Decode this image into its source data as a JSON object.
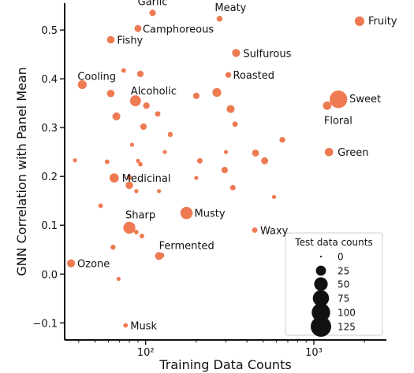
{
  "chart_data": {
    "type": "scatter",
    "title": "",
    "xlabel": "Training Data Counts",
    "ylabel": "GNN Correlation with Panel Mean",
    "xscale": "log",
    "xlim": [
      33,
      2700
    ],
    "ylim": [
      -0.135,
      0.555
    ],
    "x_ticks": [
      {
        "value": 100,
        "label": "10²"
      },
      {
        "value": 1000,
        "label": "10³"
      }
    ],
    "y_ticks": [
      {
        "value": -0.1,
        "label": "−0.1"
      },
      {
        "value": 0.0,
        "label": "0.0"
      },
      {
        "value": 0.1,
        "label": "0.1"
      },
      {
        "value": 0.2,
        "label": "0.2"
      },
      {
        "value": 0.3,
        "label": "0.3"
      },
      {
        "value": 0.4,
        "label": "0.4"
      },
      {
        "value": 0.5,
        "label": "0.5"
      }
    ],
    "grid": false,
    "marker_color": "#ee7a52",
    "size_encoding": "Test data counts",
    "legend": {
      "title": "Test data counts",
      "placement": "bottom-right",
      "entries": [
        {
          "label": "0",
          "value": 0
        },
        {
          "label": "25",
          "value": 25
        },
        {
          "label": "50",
          "value": 50
        },
        {
          "label": "75",
          "value": 75
        },
        {
          "label": "100",
          "value": 100
        },
        {
          "label": "125",
          "value": 125
        }
      ]
    },
    "labeled_points": [
      {
        "label": "Garlic",
        "x": 110,
        "y": 0.535,
        "size": 8
      },
      {
        "label": "Meaty",
        "x": 275,
        "y": 0.523,
        "size": 6
      },
      {
        "label": "Fruity",
        "x": 1870,
        "y": 0.518,
        "size": 22
      },
      {
        "label": "Camphoreous",
        "x": 90,
        "y": 0.503,
        "size": 10
      },
      {
        "label": "Fishy",
        "x": 62,
        "y": 0.48,
        "size": 12
      },
      {
        "label": "Sulfurous",
        "x": 345,
        "y": 0.453,
        "size": 14
      },
      {
        "label": "Roasted",
        "x": 310,
        "y": 0.408,
        "size": 6
      },
      {
        "label": "Cooling",
        "x": 42,
        "y": 0.388,
        "size": 18
      },
      {
        "label": "Sweet",
        "x": 1400,
        "y": 0.358,
        "size": 90
      },
      {
        "label": "Alcoholic",
        "x": 87,
        "y": 0.355,
        "size": 30
      },
      {
        "label": "Floral",
        "x": 1200,
        "y": 0.345,
        "size": 16
      },
      {
        "label": "Green",
        "x": 1230,
        "y": 0.25,
        "size": 16
      },
      {
        "label": "Medicinal",
        "x": 65,
        "y": 0.197,
        "size": 20
      },
      {
        "label": "Musty",
        "x": 175,
        "y": 0.125,
        "size": 40
      },
      {
        "label": "Sharp",
        "x": 80,
        "y": 0.095,
        "size": 38
      },
      {
        "label": "Waxy",
        "x": 445,
        "y": 0.09,
        "size": 5
      },
      {
        "label": "Fermented",
        "x": 120,
        "y": 0.037,
        "size": 14
      },
      {
        "label": "Ozone",
        "x": 36,
        "y": 0.022,
        "size": 14
      },
      {
        "label": "Musk",
        "x": 76,
        "y": -0.105,
        "size": 3
      }
    ],
    "unlabeled_points": [
      {
        "x": 74,
        "y": 0.417,
        "size": 3
      },
      {
        "x": 93,
        "y": 0.41,
        "size": 8
      },
      {
        "x": 62,
        "y": 0.37,
        "size": 12
      },
      {
        "x": 200,
        "y": 0.365,
        "size": 8
      },
      {
        "x": 265,
        "y": 0.372,
        "size": 18
      },
      {
        "x": 101,
        "y": 0.345,
        "size": 8
      },
      {
        "x": 320,
        "y": 0.338,
        "size": 14
      },
      {
        "x": 67,
        "y": 0.323,
        "size": 14
      },
      {
        "x": 118,
        "y": 0.328,
        "size": 5
      },
      {
        "x": 340,
        "y": 0.307,
        "size": 5
      },
      {
        "x": 97,
        "y": 0.302,
        "size": 8
      },
      {
        "x": 650,
        "y": 0.275,
        "size": 6
      },
      {
        "x": 140,
        "y": 0.286,
        "size": 4
      },
      {
        "x": 83,
        "y": 0.265,
        "size": 2
      },
      {
        "x": 130,
        "y": 0.25,
        "size": 2
      },
      {
        "x": 210,
        "y": 0.232,
        "size": 5
      },
      {
        "x": 300,
        "y": 0.25,
        "size": 2
      },
      {
        "x": 450,
        "y": 0.248,
        "size": 10
      },
      {
        "x": 510,
        "y": 0.232,
        "size": 10
      },
      {
        "x": 38,
        "y": 0.233,
        "size": 2
      },
      {
        "x": 59,
        "y": 0.23,
        "size": 3
      },
      {
        "x": 90,
        "y": 0.232,
        "size": 2
      },
      {
        "x": 93,
        "y": 0.225,
        "size": 3
      },
      {
        "x": 295,
        "y": 0.213,
        "size": 8
      },
      {
        "x": 200,
        "y": 0.197,
        "size": 2
      },
      {
        "x": 80,
        "y": 0.198,
        "size": 4
      },
      {
        "x": 80,
        "y": 0.182,
        "size": 12
      },
      {
        "x": 88,
        "y": 0.17,
        "size": 2
      },
      {
        "x": 120,
        "y": 0.17,
        "size": 2
      },
      {
        "x": 330,
        "y": 0.177,
        "size": 5
      },
      {
        "x": 580,
        "y": 0.158,
        "size": 2
      },
      {
        "x": 54,
        "y": 0.14,
        "size": 3
      },
      {
        "x": 88,
        "y": 0.086,
        "size": 3
      },
      {
        "x": 95,
        "y": 0.078,
        "size": 3
      },
      {
        "x": 64,
        "y": 0.055,
        "size": 4
      },
      {
        "x": 124,
        "y": 0.038,
        "size": 6
      },
      {
        "x": 69,
        "y": -0.01,
        "size": 2
      }
    ]
  }
}
